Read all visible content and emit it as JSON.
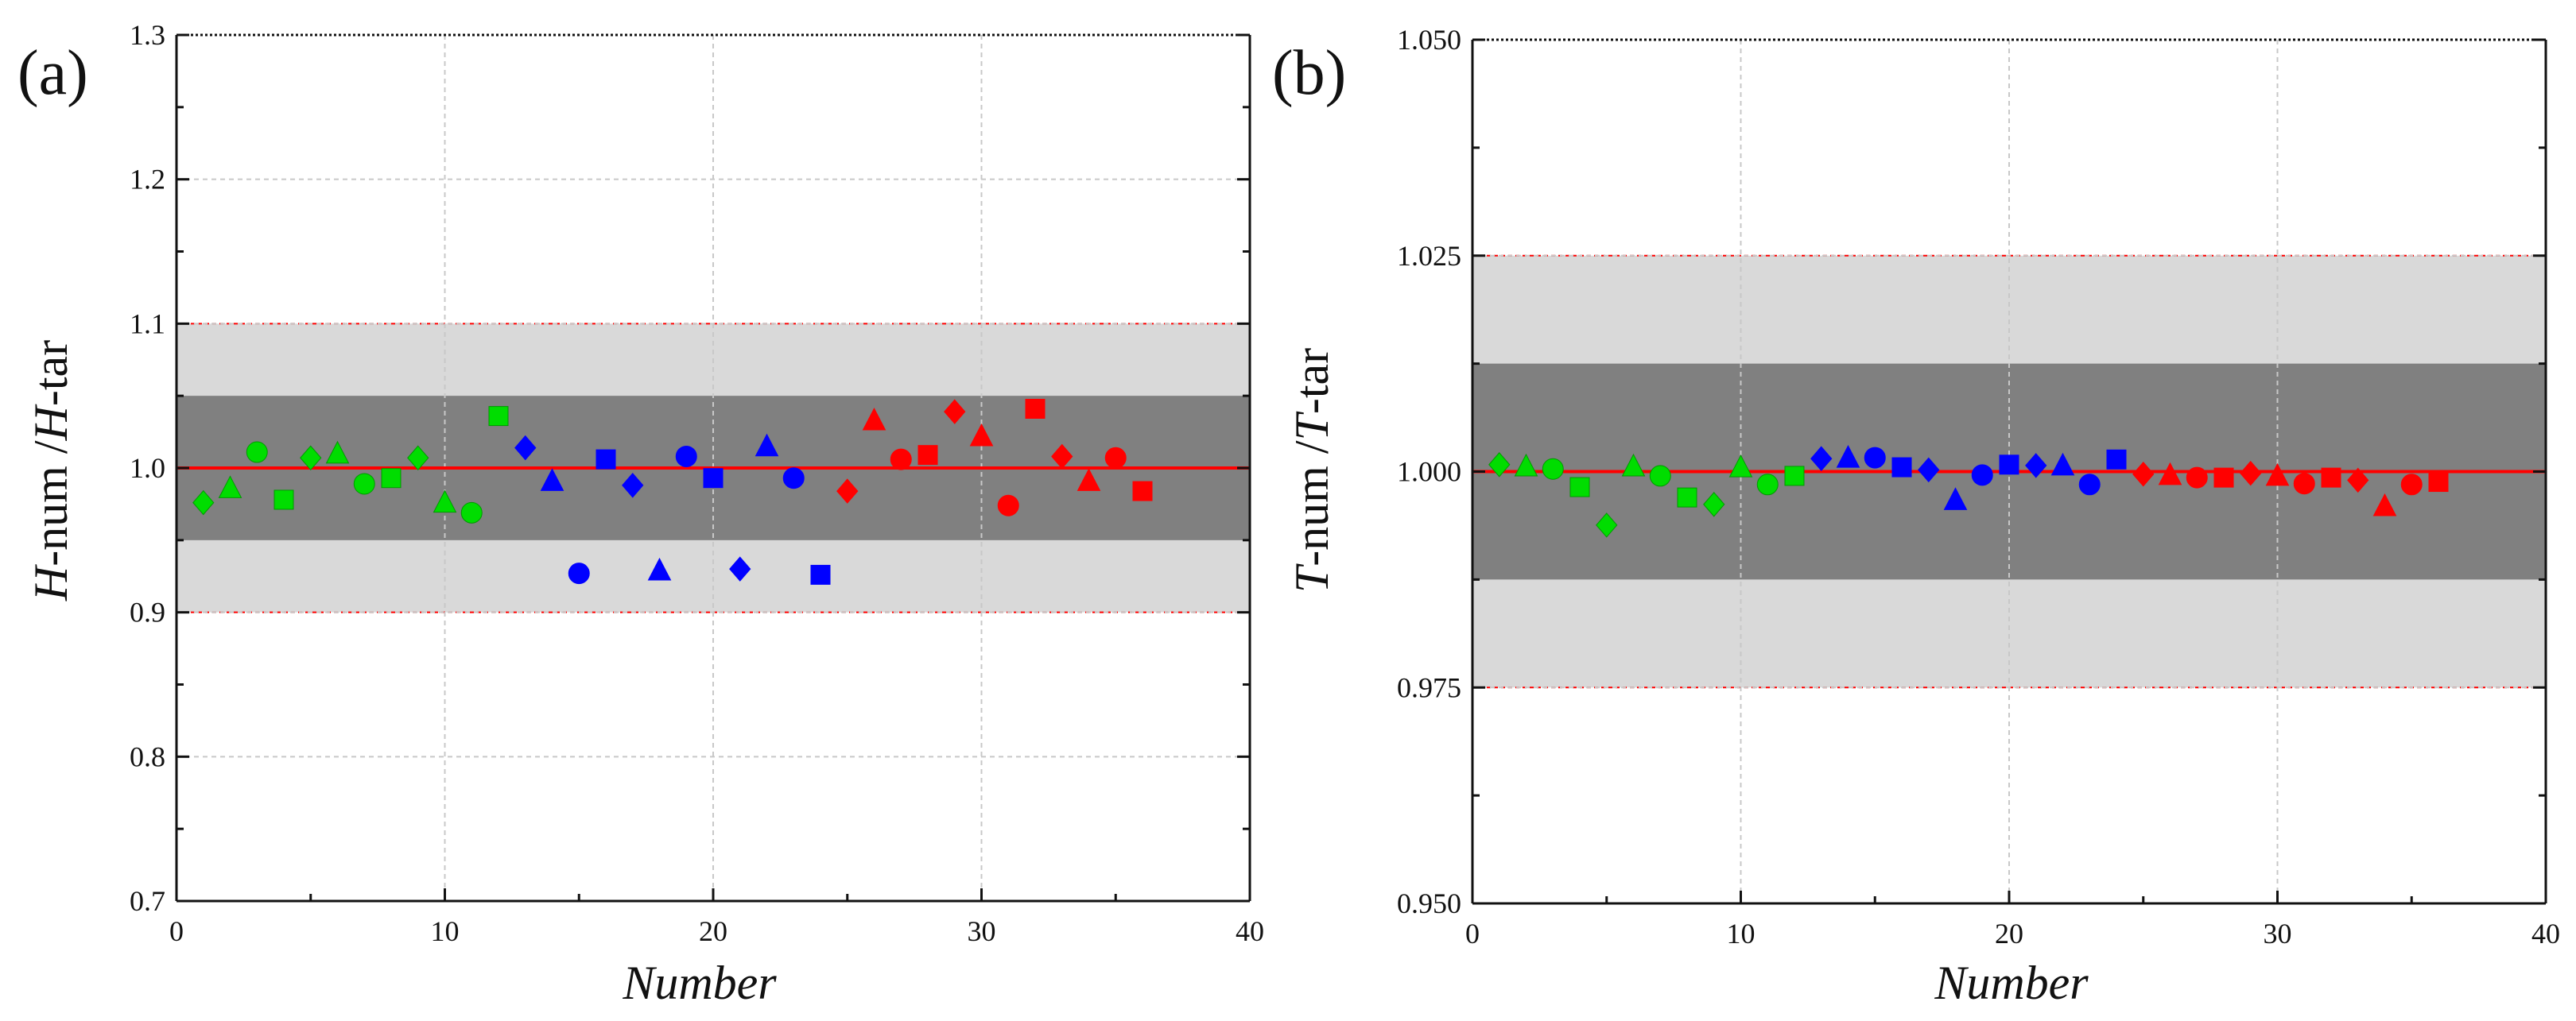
{
  "chart_data": [
    {
      "type": "scatter",
      "panel_label": "(a)",
      "xlabel": "Number",
      "ylabel": {
        "v1": "H",
        "s1": "-num",
        "mid": " /",
        "v2": "H",
        "s2": "-tar"
      },
      "xlim": [
        0,
        40
      ],
      "ylim": [
        0.7,
        1.3
      ],
      "xticks": [
        0,
        10,
        20,
        30,
        40
      ],
      "yticks": [
        0.7,
        0.8,
        0.9,
        1.0,
        1.1,
        1.2,
        1.3
      ],
      "xtick_labels": [
        "0",
        "10",
        "20",
        "30",
        "40"
      ],
      "ytick_labels": [
        "0.7",
        "0.8",
        "0.9",
        "1.0",
        "1.1",
        "1.2",
        "1.3"
      ],
      "grid": true,
      "reference_line": 1.0,
      "bands": [
        {
          "name": "outer",
          "range": [
            0.9,
            1.1
          ],
          "color": "#d9d9d9",
          "edge_color": "#ff0000"
        },
        {
          "name": "inner",
          "range": [
            0.95,
            1.05
          ],
          "color": "#808080"
        }
      ],
      "points": [
        {
          "x": 1,
          "y": 0.976,
          "marker": "diamond",
          "color": "#00dd00"
        },
        {
          "x": 2,
          "y": 0.986,
          "marker": "triangle",
          "color": "#00dd00"
        },
        {
          "x": 3,
          "y": 1.011,
          "marker": "circle",
          "color": "#00dd00"
        },
        {
          "x": 4,
          "y": 0.978,
          "marker": "square",
          "color": "#00dd00"
        },
        {
          "x": 5,
          "y": 1.007,
          "marker": "diamond",
          "color": "#00dd00"
        },
        {
          "x": 6,
          "y": 1.01,
          "marker": "triangle",
          "color": "#00dd00"
        },
        {
          "x": 7,
          "y": 0.989,
          "marker": "circle",
          "color": "#00dd00"
        },
        {
          "x": 8,
          "y": 0.993,
          "marker": "square",
          "color": "#00dd00"
        },
        {
          "x": 9,
          "y": 1.007,
          "marker": "diamond",
          "color": "#00dd00"
        },
        {
          "x": 10,
          "y": 0.976,
          "marker": "triangle",
          "color": "#00dd00"
        },
        {
          "x": 11,
          "y": 0.969,
          "marker": "circle",
          "color": "#00dd00"
        },
        {
          "x": 12,
          "y": 1.036,
          "marker": "square",
          "color": "#00dd00"
        },
        {
          "x": 13,
          "y": 1.014,
          "marker": "diamond",
          "color": "#0000ff"
        },
        {
          "x": 14,
          "y": 0.991,
          "marker": "triangle",
          "color": "#0000ff"
        },
        {
          "x": 15,
          "y": 0.927,
          "marker": "circle",
          "color": "#0000ff"
        },
        {
          "x": 16,
          "y": 1.006,
          "marker": "square",
          "color": "#0000ff"
        },
        {
          "x": 17,
          "y": 0.988,
          "marker": "diamond",
          "color": "#0000ff"
        },
        {
          "x": 18,
          "y": 0.929,
          "marker": "triangle",
          "color": "#0000ff"
        },
        {
          "x": 19,
          "y": 1.008,
          "marker": "circle",
          "color": "#0000ff"
        },
        {
          "x": 20,
          "y": 0.993,
          "marker": "square",
          "color": "#0000ff"
        },
        {
          "x": 21,
          "y": 0.93,
          "marker": "diamond",
          "color": "#0000ff"
        },
        {
          "x": 22,
          "y": 1.015,
          "marker": "triangle",
          "color": "#0000ff"
        },
        {
          "x": 23,
          "y": 0.993,
          "marker": "circle",
          "color": "#0000ff"
        },
        {
          "x": 24,
          "y": 0.926,
          "marker": "square",
          "color": "#0000ff"
        },
        {
          "x": 25,
          "y": 0.984,
          "marker": "diamond",
          "color": "#ff0000"
        },
        {
          "x": 26,
          "y": 1.033,
          "marker": "triangle",
          "color": "#ff0000"
        },
        {
          "x": 27,
          "y": 1.006,
          "marker": "circle",
          "color": "#ff0000"
        },
        {
          "x": 28,
          "y": 1.009,
          "marker": "square",
          "color": "#ff0000"
        },
        {
          "x": 29,
          "y": 1.039,
          "marker": "diamond",
          "color": "#ff0000"
        },
        {
          "x": 30,
          "y": 1.022,
          "marker": "triangle",
          "color": "#ff0000"
        },
        {
          "x": 31,
          "y": 0.974,
          "marker": "circle",
          "color": "#ff0000"
        },
        {
          "x": 32,
          "y": 1.041,
          "marker": "square",
          "color": "#ff0000"
        },
        {
          "x": 33,
          "y": 1.008,
          "marker": "diamond",
          "color": "#ff0000"
        },
        {
          "x": 34,
          "y": 0.991,
          "marker": "triangle",
          "color": "#ff0000"
        },
        {
          "x": 35,
          "y": 1.007,
          "marker": "circle",
          "color": "#ff0000"
        },
        {
          "x": 36,
          "y": 0.984,
          "marker": "square",
          "color": "#ff0000"
        }
      ]
    },
    {
      "type": "scatter",
      "panel_label": "(b)",
      "xlabel": "Number",
      "ylabel": {
        "v1": "T",
        "s1": "-num",
        "mid": " /",
        "v2": "T",
        "s2": "-tar"
      },
      "xlim": [
        0,
        40
      ],
      "ylim": [
        0.95,
        1.05
      ],
      "xticks": [
        0,
        10,
        20,
        30,
        40
      ],
      "yticks": [
        0.95,
        0.975,
        1.0,
        1.025,
        1.05
      ],
      "xtick_labels": [
        "0",
        "10",
        "20",
        "30",
        "40"
      ],
      "ytick_labels": [
        "0.950",
        "0.975",
        "1.000",
        "1.025",
        "1.050"
      ],
      "grid": true,
      "reference_line": 1.0,
      "bands": [
        {
          "name": "outer",
          "range": [
            0.975,
            1.025
          ],
          "color": "#d9d9d9",
          "edge_color": "#ff0000"
        },
        {
          "name": "inner",
          "range": [
            0.9875,
            1.0125
          ],
          "color": "#808080"
        }
      ],
      "points": [
        {
          "x": 1,
          "y": 1.0008,
          "marker": "diamond",
          "color": "#00dd00"
        },
        {
          "x": 2,
          "y": 1.0006,
          "marker": "triangle",
          "color": "#00dd00"
        },
        {
          "x": 3,
          "y": 1.0003,
          "marker": "circle",
          "color": "#00dd00"
        },
        {
          "x": 4,
          "y": 0.9982,
          "marker": "square",
          "color": "#00dd00"
        },
        {
          "x": 5,
          "y": 0.9938,
          "marker": "diamond",
          "color": "#00dd00"
        },
        {
          "x": 6,
          "y": 1.0006,
          "marker": "triangle",
          "color": "#00dd00"
        },
        {
          "x": 7,
          "y": 0.9995,
          "marker": "circle",
          "color": "#00dd00"
        },
        {
          "x": 8,
          "y": 0.997,
          "marker": "square",
          "color": "#00dd00"
        },
        {
          "x": 9,
          "y": 0.9962,
          "marker": "diamond",
          "color": "#00dd00"
        },
        {
          "x": 10,
          "y": 1.0005,
          "marker": "triangle",
          "color": "#00dd00"
        },
        {
          "x": 11,
          "y": 0.9985,
          "marker": "circle",
          "color": "#00dd00"
        },
        {
          "x": 12,
          "y": 0.9995,
          "marker": "square",
          "color": "#00dd00"
        },
        {
          "x": 13,
          "y": 1.0015,
          "marker": "diamond",
          "color": "#0000ff"
        },
        {
          "x": 14,
          "y": 1.0016,
          "marker": "triangle",
          "color": "#0000ff"
        },
        {
          "x": 15,
          "y": 1.0016,
          "marker": "circle",
          "color": "#0000ff"
        },
        {
          "x": 16,
          "y": 1.0005,
          "marker": "square",
          "color": "#0000ff"
        },
        {
          "x": 17,
          "y": 1.0002,
          "marker": "diamond",
          "color": "#0000ff"
        },
        {
          "x": 18,
          "y": 0.9967,
          "marker": "triangle",
          "color": "#0000ff"
        },
        {
          "x": 19,
          "y": 0.9996,
          "marker": "circle",
          "color": "#0000ff"
        },
        {
          "x": 20,
          "y": 1.0008,
          "marker": "square",
          "color": "#0000ff"
        },
        {
          "x": 21,
          "y": 1.0007,
          "marker": "diamond",
          "color": "#0000ff"
        },
        {
          "x": 22,
          "y": 1.0007,
          "marker": "triangle",
          "color": "#0000ff"
        },
        {
          "x": 23,
          "y": 0.9985,
          "marker": "circle",
          "color": "#0000ff"
        },
        {
          "x": 24,
          "y": 1.0014,
          "marker": "square",
          "color": "#0000ff"
        },
        {
          "x": 25,
          "y": 0.9997,
          "marker": "diamond",
          "color": "#ff0000"
        },
        {
          "x": 26,
          "y": 0.9996,
          "marker": "triangle",
          "color": "#ff0000"
        },
        {
          "x": 27,
          "y": 0.9993,
          "marker": "circle",
          "color": "#ff0000"
        },
        {
          "x": 28,
          "y": 0.9993,
          "marker": "square",
          "color": "#ff0000"
        },
        {
          "x": 29,
          "y": 0.9998,
          "marker": "diamond",
          "color": "#ff0000"
        },
        {
          "x": 30,
          "y": 0.9995,
          "marker": "triangle",
          "color": "#ff0000"
        },
        {
          "x": 31,
          "y": 0.9986,
          "marker": "circle",
          "color": "#ff0000"
        },
        {
          "x": 32,
          "y": 0.9993,
          "marker": "square",
          "color": "#ff0000"
        },
        {
          "x": 33,
          "y": 0.999,
          "marker": "diamond",
          "color": "#ff0000"
        },
        {
          "x": 34,
          "y": 0.996,
          "marker": "triangle",
          "color": "#ff0000"
        },
        {
          "x": 35,
          "y": 0.9985,
          "marker": "circle",
          "color": "#ff0000"
        },
        {
          "x": 36,
          "y": 0.9988,
          "marker": "square",
          "color": "#ff0000"
        }
      ]
    }
  ]
}
